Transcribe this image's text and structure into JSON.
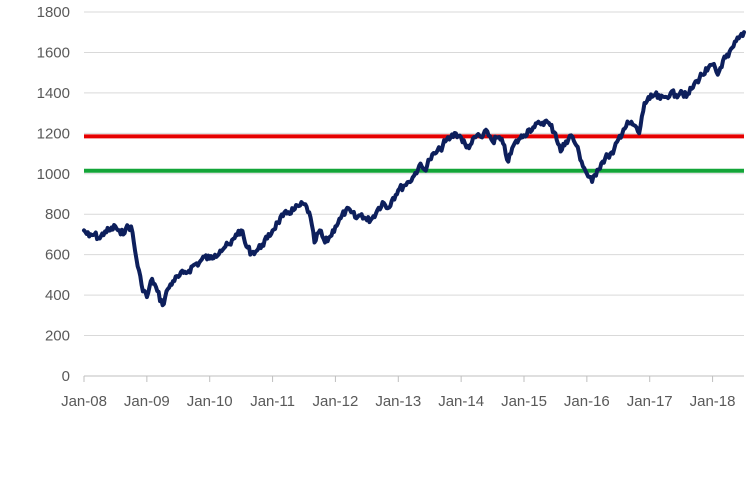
{
  "chart_data": {
    "type": "line",
    "title": "",
    "xlabel": "",
    "ylabel": "",
    "ylim": [
      0,
      1800
    ],
    "y_ticks": [
      0,
      200,
      400,
      600,
      800,
      1000,
      1200,
      1400,
      1600,
      1800
    ],
    "x_ticks": [
      "Jan-08",
      "Jan-09",
      "Jan-10",
      "Jan-11",
      "Jan-12",
      "Jan-13",
      "Jan-14",
      "Jan-15",
      "Jan-16",
      "Jan-17",
      "Jan-18"
    ],
    "x_range": [
      "2008-01",
      "2018-07"
    ],
    "grid": "horizontal",
    "legend": "none",
    "series": [
      {
        "color": "#0d1f5c",
        "points": [
          [
            "2008-01",
            720
          ],
          [
            "2008-02",
            690
          ],
          [
            "2008-03",
            700
          ],
          [
            "2008-04",
            680
          ],
          [
            "2008-05",
            715
          ],
          [
            "2008-06",
            720
          ],
          [
            "2008-07",
            740
          ],
          [
            "2008-08",
            700
          ],
          [
            "2008-09",
            730
          ],
          [
            "2008-10",
            740
          ],
          [
            "2008-11",
            580
          ],
          [
            "2008-12",
            450
          ],
          [
            "2009-01",
            390
          ],
          [
            "2009-02",
            480
          ],
          [
            "2009-03",
            420
          ],
          [
            "2009-04",
            350
          ],
          [
            "2009-05",
            430
          ],
          [
            "2009-06",
            470
          ],
          [
            "2009-07",
            490
          ],
          [
            "2009-08",
            510
          ],
          [
            "2009-09",
            520
          ],
          [
            "2009-10",
            550
          ],
          [
            "2009-11",
            560
          ],
          [
            "2009-12",
            590
          ],
          [
            "2010-01",
            580
          ],
          [
            "2010-02",
            600
          ],
          [
            "2010-03",
            620
          ],
          [
            "2010-04",
            640
          ],
          [
            "2010-05",
            650
          ],
          [
            "2010-06",
            700
          ],
          [
            "2010-07",
            720
          ],
          [
            "2010-08",
            640
          ],
          [
            "2010-09",
            610
          ],
          [
            "2010-10",
            620
          ],
          [
            "2010-11",
            650
          ],
          [
            "2010-12",
            680
          ],
          [
            "2011-01",
            720
          ],
          [
            "2011-02",
            760
          ],
          [
            "2011-03",
            790
          ],
          [
            "2011-04",
            810
          ],
          [
            "2011-05",
            820
          ],
          [
            "2011-06",
            840
          ],
          [
            "2011-07",
            850
          ],
          [
            "2011-08",
            810
          ],
          [
            "2011-09",
            660
          ],
          [
            "2011-10",
            720
          ],
          [
            "2011-11",
            660
          ],
          [
            "2011-12",
            690
          ],
          [
            "2012-01",
            740
          ],
          [
            "2012-02",
            780
          ],
          [
            "2012-03",
            820
          ],
          [
            "2012-04",
            810
          ],
          [
            "2012-05",
            780
          ],
          [
            "2012-06",
            800
          ],
          [
            "2012-07",
            770
          ],
          [
            "2012-08",
            780
          ],
          [
            "2012-09",
            820
          ],
          [
            "2012-10",
            860
          ],
          [
            "2012-11",
            830
          ],
          [
            "2012-12",
            880
          ],
          [
            "2013-01",
            920
          ],
          [
            "2013-02",
            940
          ],
          [
            "2013-03",
            960
          ],
          [
            "2013-04",
            990
          ],
          [
            "2013-05",
            1040
          ],
          [
            "2013-06",
            1020
          ],
          [
            "2013-07",
            1070
          ],
          [
            "2013-08",
            1100
          ],
          [
            "2013-09",
            1120
          ],
          [
            "2013-10",
            1160
          ],
          [
            "2013-11",
            1180
          ],
          [
            "2013-12",
            1200
          ],
          [
            "2014-01",
            1180
          ],
          [
            "2014-02",
            1130
          ],
          [
            "2014-03",
            1150
          ],
          [
            "2014-04",
            1190
          ],
          [
            "2014-05",
            1180
          ],
          [
            "2014-06",
            1210
          ],
          [
            "2014-07",
            1160
          ],
          [
            "2014-08",
            1180
          ],
          [
            "2014-09",
            1150
          ],
          [
            "2014-10",
            1060
          ],
          [
            "2014-11",
            1140
          ],
          [
            "2014-12",
            1170
          ],
          [
            "2015-01",
            1190
          ],
          [
            "2015-02",
            1220
          ],
          [
            "2015-03",
            1230
          ],
          [
            "2015-04",
            1250
          ],
          [
            "2015-05",
            1260
          ],
          [
            "2015-06",
            1240
          ],
          [
            "2015-07",
            1200
          ],
          [
            "2015-08",
            1110
          ],
          [
            "2015-09",
            1160
          ],
          [
            "2015-10",
            1190
          ],
          [
            "2015-11",
            1140
          ],
          [
            "2015-12",
            1060
          ],
          [
            "2016-01",
            1000
          ],
          [
            "2016-02",
            960
          ],
          [
            "2016-03",
            1020
          ],
          [
            "2016-04",
            1060
          ],
          [
            "2016-05",
            1090
          ],
          [
            "2016-06",
            1100
          ],
          [
            "2016-07",
            1170
          ],
          [
            "2016-08",
            1220
          ],
          [
            "2016-09",
            1250
          ],
          [
            "2016-10",
            1240
          ],
          [
            "2016-11",
            1200
          ],
          [
            "2016-12",
            1350
          ],
          [
            "2017-01",
            1370
          ],
          [
            "2017-02",
            1390
          ],
          [
            "2017-03",
            1370
          ],
          [
            "2017-04",
            1380
          ],
          [
            "2017-05",
            1400
          ],
          [
            "2017-06",
            1390
          ],
          [
            "2017-07",
            1410
          ],
          [
            "2017-08",
            1380
          ],
          [
            "2017-09",
            1420
          ],
          [
            "2017-10",
            1460
          ],
          [
            "2017-11",
            1490
          ],
          [
            "2017-12",
            1510
          ],
          [
            "2018-01",
            1540
          ],
          [
            "2018-02",
            1490
          ],
          [
            "2018-03",
            1560
          ],
          [
            "2018-04",
            1580
          ],
          [
            "2018-05",
            1630
          ],
          [
            "2018-06",
            1670
          ],
          [
            "2018-07",
            1700
          ]
        ]
      }
    ],
    "reference_lines": [
      {
        "y": 1185,
        "color": "#e60000"
      },
      {
        "y": 1015,
        "color": "#13a538"
      }
    ]
  }
}
